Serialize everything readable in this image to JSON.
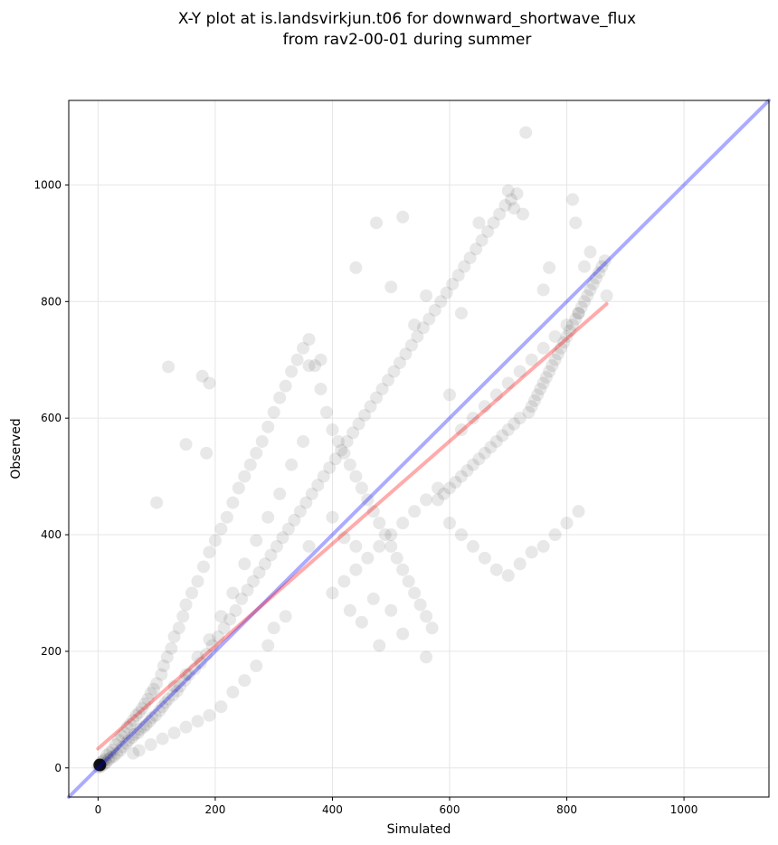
{
  "chart_data": {
    "type": "scatter",
    "title": [
      "X-Y plot at is.landsvirkjun.t06 for downward_shortwave_flux",
      "from rav2-00-01 during summer"
    ],
    "xlabel": "Simulated",
    "ylabel": "Observed",
    "xlim": [
      -50,
      1145
    ],
    "ylim": [
      -50,
      1145
    ],
    "xticks": [
      0,
      200,
      400,
      600,
      800,
      1000
    ],
    "yticks": [
      0,
      200,
      400,
      600,
      800,
      1000
    ],
    "grid": true,
    "colors": {
      "points": "#000000",
      "one_to_one": "#0000ff",
      "fit": "#ff0000",
      "grid": "#e6e6e6"
    },
    "lines": [
      {
        "kind": "one-to-one",
        "x": [
          -50,
          1145
        ],
        "y": [
          -50,
          1145
        ]
      },
      {
        "kind": "regression",
        "x": [
          0,
          868
        ],
        "y": [
          33,
          796
        ]
      }
    ],
    "points": [
      [
        0,
        2
      ],
      [
        2,
        5
      ],
      [
        3,
        1
      ],
      [
        5,
        9
      ],
      [
        6,
        4
      ],
      [
        8,
        12
      ],
      [
        10,
        6
      ],
      [
        12,
        15
      ],
      [
        14,
        9
      ],
      [
        15,
        22
      ],
      [
        18,
        14
      ],
      [
        20,
        26
      ],
      [
        22,
        18
      ],
      [
        25,
        31
      ],
      [
        27,
        20
      ],
      [
        30,
        40
      ],
      [
        32,
        25
      ],
      [
        35,
        48
      ],
      [
        38,
        30
      ],
      [
        40,
        55
      ],
      [
        42,
        36
      ],
      [
        45,
        60
      ],
      [
        48,
        42
      ],
      [
        50,
        70
      ],
      [
        52,
        47
      ],
      [
        55,
        75
      ],
      [
        58,
        52
      ],
      [
        60,
        82
      ],
      [
        62,
        57
      ],
      [
        65,
        90
      ],
      [
        68,
        60
      ],
      [
        70,
        95
      ],
      [
        72,
        66
      ],
      [
        75,
        102
      ],
      [
        78,
        70
      ],
      [
        80,
        110
      ],
      [
        82,
        74
      ],
      [
        85,
        118
      ],
      [
        88,
        80
      ],
      [
        90,
        128
      ],
      [
        92,
        86
      ],
      [
        95,
        135
      ],
      [
        98,
        90
      ],
      [
        100,
        145
      ],
      [
        105,
        98
      ],
      [
        108,
        160
      ],
      [
        110,
        105
      ],
      [
        112,
        175
      ],
      [
        115,
        112
      ],
      [
        118,
        190
      ],
      [
        120,
        118
      ],
      [
        125,
        205
      ],
      [
        128,
        125
      ],
      [
        130,
        225
      ],
      [
        135,
        132
      ],
      [
        138,
        240
      ],
      [
        140,
        140
      ],
      [
        145,
        260
      ],
      [
        148,
        150
      ],
      [
        150,
        280
      ],
      [
        155,
        160
      ],
      [
        160,
        300
      ],
      [
        165,
        170
      ],
      [
        170,
        320
      ],
      [
        175,
        180
      ],
      [
        180,
        345
      ],
      [
        185,
        195
      ],
      [
        190,
        370
      ],
      [
        195,
        210
      ],
      [
        200,
        390
      ],
      [
        205,
        225
      ],
      [
        210,
        410
      ],
      [
        215,
        240
      ],
      [
        220,
        430
      ],
      [
        225,
        255
      ],
      [
        230,
        455
      ],
      [
        235,
        270
      ],
      [
        240,
        480
      ],
      [
        245,
        290
      ],
      [
        250,
        500
      ],
      [
        255,
        305
      ],
      [
        260,
        520
      ],
      [
        265,
        320
      ],
      [
        270,
        540
      ],
      [
        275,
        335
      ],
      [
        280,
        560
      ],
      [
        285,
        350
      ],
      [
        290,
        585
      ],
      [
        295,
        365
      ],
      [
        300,
        610
      ],
      [
        305,
        380
      ],
      [
        310,
        635
      ],
      [
        315,
        395
      ],
      [
        320,
        655
      ],
      [
        325,
        410
      ],
      [
        330,
        680
      ],
      [
        335,
        425
      ],
      [
        340,
        700
      ],
      [
        345,
        440
      ],
      [
        350,
        720
      ],
      [
        355,
        455
      ],
      [
        360,
        735
      ],
      [
        365,
        470
      ],
      [
        370,
        690
      ],
      [
        375,
        485
      ],
      [
        380,
        650
      ],
      [
        385,
        500
      ],
      [
        390,
        610
      ],
      [
        395,
        515
      ],
      [
        400,
        580
      ],
      [
        405,
        530
      ],
      [
        410,
        560
      ],
      [
        415,
        545
      ],
      [
        420,
        540
      ],
      [
        425,
        560
      ],
      [
        430,
        520
      ],
      [
        435,
        575
      ],
      [
        440,
        500
      ],
      [
        445,
        590
      ],
      [
        450,
        480
      ],
      [
        455,
        605
      ],
      [
        460,
        460
      ],
      [
        465,
        620
      ],
      [
        470,
        440
      ],
      [
        475,
        635
      ],
      [
        480,
        420
      ],
      [
        485,
        650
      ],
      [
        490,
        400
      ],
      [
        495,
        665
      ],
      [
        500,
        380
      ],
      [
        505,
        680
      ],
      [
        510,
        360
      ],
      [
        515,
        695
      ],
      [
        520,
        340
      ],
      [
        525,
        710
      ],
      [
        530,
        320
      ],
      [
        535,
        725
      ],
      [
        540,
        300
      ],
      [
        545,
        740
      ],
      [
        550,
        280
      ],
      [
        555,
        755
      ],
      [
        560,
        260
      ],
      [
        565,
        770
      ],
      [
        570,
        240
      ],
      [
        575,
        785
      ],
      [
        580,
        460
      ],
      [
        585,
        800
      ],
      [
        590,
        470
      ],
      [
        595,
        815
      ],
      [
        600,
        480
      ],
      [
        605,
        830
      ],
      [
        610,
        490
      ],
      [
        615,
        845
      ],
      [
        620,
        500
      ],
      [
        625,
        860
      ],
      [
        630,
        510
      ],
      [
        635,
        875
      ],
      [
        640,
        520
      ],
      [
        645,
        890
      ],
      [
        650,
        530
      ],
      [
        655,
        905
      ],
      [
        660,
        540
      ],
      [
        665,
        920
      ],
      [
        670,
        550
      ],
      [
        675,
        935
      ],
      [
        680,
        560
      ],
      [
        685,
        950
      ],
      [
        690,
        570
      ],
      [
        695,
        965
      ],
      [
        700,
        580
      ],
      [
        705,
        975
      ],
      [
        710,
        590
      ],
      [
        715,
        985
      ],
      [
        720,
        600
      ],
      [
        725,
        950
      ],
      [
        730,
        1090
      ],
      [
        735,
        610
      ],
      [
        740,
        620
      ],
      [
        745,
        630
      ],
      [
        750,
        640
      ],
      [
        755,
        650
      ],
      [
        760,
        660
      ],
      [
        765,
        670
      ],
      [
        770,
        680
      ],
      [
        775,
        690
      ],
      [
        780,
        700
      ],
      [
        785,
        710
      ],
      [
        790,
        720
      ],
      [
        795,
        730
      ],
      [
        800,
        740
      ],
      [
        805,
        750
      ],
      [
        810,
        760
      ],
      [
        815,
        770
      ],
      [
        820,
        780
      ],
      [
        825,
        790
      ],
      [
        830,
        800
      ],
      [
        835,
        810
      ],
      [
        840,
        820
      ],
      [
        845,
        830
      ],
      [
        850,
        840
      ],
      [
        855,
        850
      ],
      [
        860,
        860
      ],
      [
        865,
        870
      ],
      [
        868,
        810
      ],
      [
        150,
        555
      ],
      [
        185,
        540
      ],
      [
        190,
        660
      ],
      [
        178,
        672
      ],
      [
        120,
        688
      ],
      [
        100,
        455
      ],
      [
        360,
        690
      ],
      [
        380,
        700
      ],
      [
        440,
        858
      ],
      [
        475,
        935
      ],
      [
        520,
        945
      ],
      [
        650,
        935
      ],
      [
        700,
        990
      ],
      [
        710,
        960
      ],
      [
        810,
        975
      ],
      [
        815,
        935
      ],
      [
        830,
        860
      ],
      [
        840,
        885
      ],
      [
        770,
        858
      ],
      [
        760,
        820
      ],
      [
        620,
        780
      ],
      [
        540,
        760
      ],
      [
        500,
        825
      ],
      [
        560,
        810
      ],
      [
        520,
        230
      ],
      [
        560,
        190
      ],
      [
        480,
        210
      ],
      [
        470,
        290
      ],
      [
        500,
        270
      ],
      [
        440,
        380
      ],
      [
        420,
        395
      ],
      [
        400,
        430
      ],
      [
        360,
        380
      ],
      [
        320,
        260
      ],
      [
        300,
        240
      ],
      [
        290,
        210
      ],
      [
        270,
        175
      ],
      [
        250,
        150
      ],
      [
        230,
        130
      ],
      [
        210,
        105
      ],
      [
        190,
        90
      ],
      [
        170,
        80
      ],
      [
        150,
        70
      ],
      [
        130,
        60
      ],
      [
        110,
        50
      ],
      [
        90,
        40
      ],
      [
        70,
        30
      ],
      [
        60,
        25
      ],
      [
        350,
        560
      ],
      [
        330,
        520
      ],
      [
        310,
        470
      ],
      [
        290,
        430
      ],
      [
        270,
        390
      ],
      [
        250,
        350
      ],
      [
        230,
        300
      ],
      [
        210,
        260
      ],
      [
        190,
        220
      ],
      [
        170,
        190
      ],
      [
        150,
        160
      ],
      [
        130,
        140
      ],
      [
        600,
        640
      ],
      [
        620,
        580
      ],
      [
        640,
        600
      ],
      [
        660,
        620
      ],
      [
        680,
        640
      ],
      [
        700,
        660
      ],
      [
        720,
        680
      ],
      [
        740,
        700
      ],
      [
        760,
        720
      ],
      [
        780,
        740
      ],
      [
        800,
        760
      ],
      [
        820,
        780
      ],
      [
        600,
        420
      ],
      [
        620,
        400
      ],
      [
        640,
        380
      ],
      [
        660,
        360
      ],
      [
        680,
        340
      ],
      [
        700,
        330
      ],
      [
        720,
        350
      ],
      [
        740,
        370
      ],
      [
        760,
        380
      ],
      [
        780,
        400
      ],
      [
        800,
        420
      ],
      [
        820,
        440
      ],
      [
        400,
        300
      ],
      [
        420,
        320
      ],
      [
        440,
        340
      ],
      [
        460,
        360
      ],
      [
        480,
        380
      ],
      [
        500,
        400
      ],
      [
        520,
        420
      ],
      [
        540,
        440
      ],
      [
        560,
        460
      ],
      [
        580,
        480
      ],
      [
        450,
        250
      ],
      [
        430,
        270
      ]
    ]
  }
}
